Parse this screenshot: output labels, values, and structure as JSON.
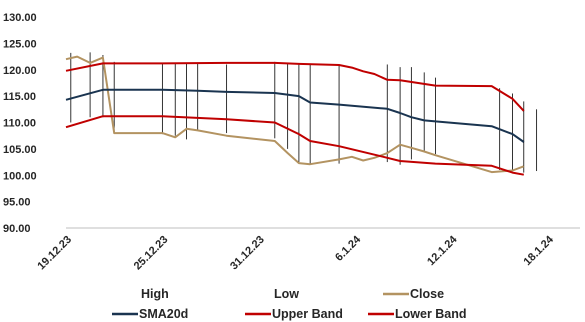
{
  "chart_data": {
    "type": "line",
    "y_ticks": [
      "130.00",
      "125.00",
      "120.00",
      "115.00",
      "110.00",
      "105.00",
      "100.00",
      "95.00",
      "90.00"
    ],
    "ylim": [
      90,
      130
    ],
    "x_tick_labels": [
      {
        "label": "19.12.23",
        "day": 0
      },
      {
        "label": "25.12.23",
        "day": 6
      },
      {
        "label": "31.12.23",
        "day": 12
      },
      {
        "label": "6.1.24",
        "day": 18
      },
      {
        "label": "12.1.24",
        "day": 24
      },
      {
        "label": "18.1.24",
        "day": 30
      }
    ],
    "xlim": [
      0,
      32
    ],
    "grid": false,
    "legend_position": "bottom",
    "high_low": [
      {
        "day": 0.3,
        "high": 123.2,
        "low": 110.0
      },
      {
        "day": 1.5,
        "high": 123.3,
        "low": 111.0
      },
      {
        "day": 2.3,
        "high": 122.8,
        "low": 111.0
      },
      {
        "day": 3.0,
        "high": 121.5,
        "low": 108.0
      },
      {
        "day": 6.0,
        "high": 121.3,
        "low": 107.8
      },
      {
        "day": 6.8,
        "high": 121.3,
        "low": 107.5
      },
      {
        "day": 7.5,
        "high": 121.3,
        "low": 106.8
      },
      {
        "day": 8.2,
        "high": 121.2,
        "low": 108.5
      },
      {
        "day": 10.0,
        "high": 121.0,
        "low": 108.0
      },
      {
        "day": 13.0,
        "high": 121.5,
        "low": 107.0
      },
      {
        "day": 13.8,
        "high": 121.3,
        "low": 105.0
      },
      {
        "day": 14.5,
        "high": 121.0,
        "low": 102.5
      },
      {
        "day": 15.2,
        "high": 121.0,
        "low": 102.0
      },
      {
        "day": 17.0,
        "high": 121.0,
        "low": 102.2
      },
      {
        "day": 20.0,
        "high": 121.0,
        "low": 102.5
      },
      {
        "day": 20.8,
        "high": 120.5,
        "low": 102.0
      },
      {
        "day": 21.5,
        "high": 120.5,
        "low": 103.0
      },
      {
        "day": 22.3,
        "high": 119.5,
        "low": 104.5
      },
      {
        "day": 23.0,
        "high": 118.5,
        "low": 104.0
      },
      {
        "day": 27.0,
        "high": 116.5,
        "low": 101.0
      },
      {
        "day": 27.8,
        "high": 115.5,
        "low": 101.0
      },
      {
        "day": 28.5,
        "high": 114.0,
        "low": 100.5
      },
      {
        "day": 29.3,
        "high": 112.5,
        "low": 100.8
      }
    ],
    "series": [
      {
        "name": "Close",
        "color": "#b39361",
        "points": [
          [
            0,
            122
          ],
          [
            0.7,
            122.5
          ],
          [
            1.5,
            121.3
          ],
          [
            2.3,
            122.3
          ],
          [
            3,
            108
          ],
          [
            6,
            108
          ],
          [
            6.8,
            107.2
          ],
          [
            7.5,
            108.8
          ],
          [
            8.2,
            108.5
          ],
          [
            10,
            107.5
          ],
          [
            13,
            106.5
          ],
          [
            13.8,
            104.2
          ],
          [
            14.5,
            102.3
          ],
          [
            15.2,
            102.1
          ],
          [
            17,
            103
          ],
          [
            17.8,
            103.5
          ],
          [
            18.5,
            102.8
          ],
          [
            19.2,
            103.3
          ],
          [
            20,
            104.2
          ],
          [
            20.8,
            105.8
          ],
          [
            21.5,
            105.2
          ],
          [
            22.3,
            104.5
          ],
          [
            23,
            103.8
          ],
          [
            26.5,
            100.6
          ],
          [
            27.8,
            100.9
          ],
          [
            28.5,
            101.7
          ]
        ]
      },
      {
        "name": "SMA20d",
        "color": "#1a3450",
        "points": [
          [
            0,
            114.3
          ],
          [
            2.3,
            116.2
          ],
          [
            3,
            116.2
          ],
          [
            6,
            116.2
          ],
          [
            8.2,
            116
          ],
          [
            10,
            115.8
          ],
          [
            13,
            115.6
          ],
          [
            14.5,
            115
          ],
          [
            15.2,
            113.8
          ],
          [
            17,
            113.4
          ],
          [
            20,
            112.6
          ],
          [
            20.8,
            111.8
          ],
          [
            21.5,
            111
          ],
          [
            22.3,
            110.4
          ],
          [
            23,
            110.2
          ],
          [
            26.5,
            109.3
          ],
          [
            27.8,
            107.8
          ],
          [
            28.5,
            106.3
          ]
        ]
      },
      {
        "name": "Upper Band",
        "color": "#c00000",
        "points": [
          [
            0,
            119.8
          ],
          [
            2.3,
            121.2
          ],
          [
            6,
            121.2
          ],
          [
            10,
            121.3
          ],
          [
            13,
            121.3
          ],
          [
            14.5,
            121.1
          ],
          [
            17,
            120.9
          ],
          [
            17.8,
            120.4
          ],
          [
            18.5,
            119.7
          ],
          [
            19.2,
            119.2
          ],
          [
            20,
            118.1
          ],
          [
            20.8,
            118
          ],
          [
            23,
            117
          ],
          [
            26.5,
            116.9
          ],
          [
            27.8,
            114.5
          ],
          [
            28.5,
            112.2
          ]
        ]
      },
      {
        "name": "Lower Band",
        "color": "#c00000",
        "points": [
          [
            0,
            109.1
          ],
          [
            2.3,
            111.2
          ],
          [
            6,
            111.2
          ],
          [
            10,
            110.6
          ],
          [
            13,
            110
          ],
          [
            14.5,
            107.8
          ],
          [
            15.2,
            106.5
          ],
          [
            17,
            105.5
          ],
          [
            20,
            103.3
          ],
          [
            20.8,
            102.7
          ],
          [
            23,
            102.2
          ],
          [
            26.5,
            101.8
          ],
          [
            27.8,
            100.5
          ],
          [
            28.5,
            100.1
          ]
        ]
      }
    ],
    "legend": [
      {
        "label": "High",
        "color": ""
      },
      {
        "label": "Low",
        "color": ""
      },
      {
        "label": "Close",
        "color": "#b39361"
      },
      {
        "label": "SMA20d",
        "color": "#1a3450"
      },
      {
        "label": "Upper Band",
        "color": "#c00000"
      },
      {
        "label": "Lower Band",
        "color": "#c00000"
      }
    ]
  }
}
